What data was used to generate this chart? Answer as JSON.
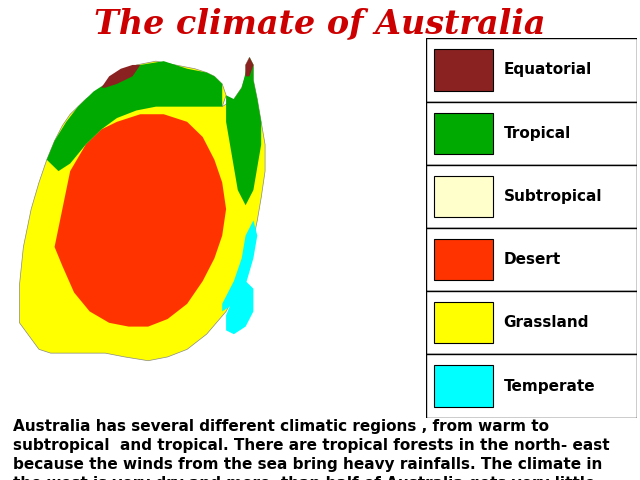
{
  "title": "The climate of Australia",
  "title_color": "#cc0000",
  "title_fontsize": 24,
  "title_fontstyle": "italic",
  "title_fontweight": "bold",
  "legend_items": [
    {
      "label": "Equatorial",
      "color": "#8B2222"
    },
    {
      "label": "Tropical",
      "color": "#00aa00"
    },
    {
      "label": "Subtropical",
      "color": "#ffffcc"
    },
    {
      "label": "Desert",
      "color": "#ff3300"
    },
    {
      "label": "Grassland",
      "color": "#ffff00"
    },
    {
      "label": "Temperate",
      "color": "#00ffff"
    }
  ],
  "body_text": "Australia has several different climatic regions , from warm to\nsubtropical  and tropical. There are tropical forests in the north- east\nbecause the winds from the sea bring heavy rainfalls. The climate in\nthe west is very dry and more  than half of Australia gets very little\nrain. In the south-west and east the winds bring rain in winter.",
  "body_fontsize": 11,
  "background_color": "#ffffff"
}
